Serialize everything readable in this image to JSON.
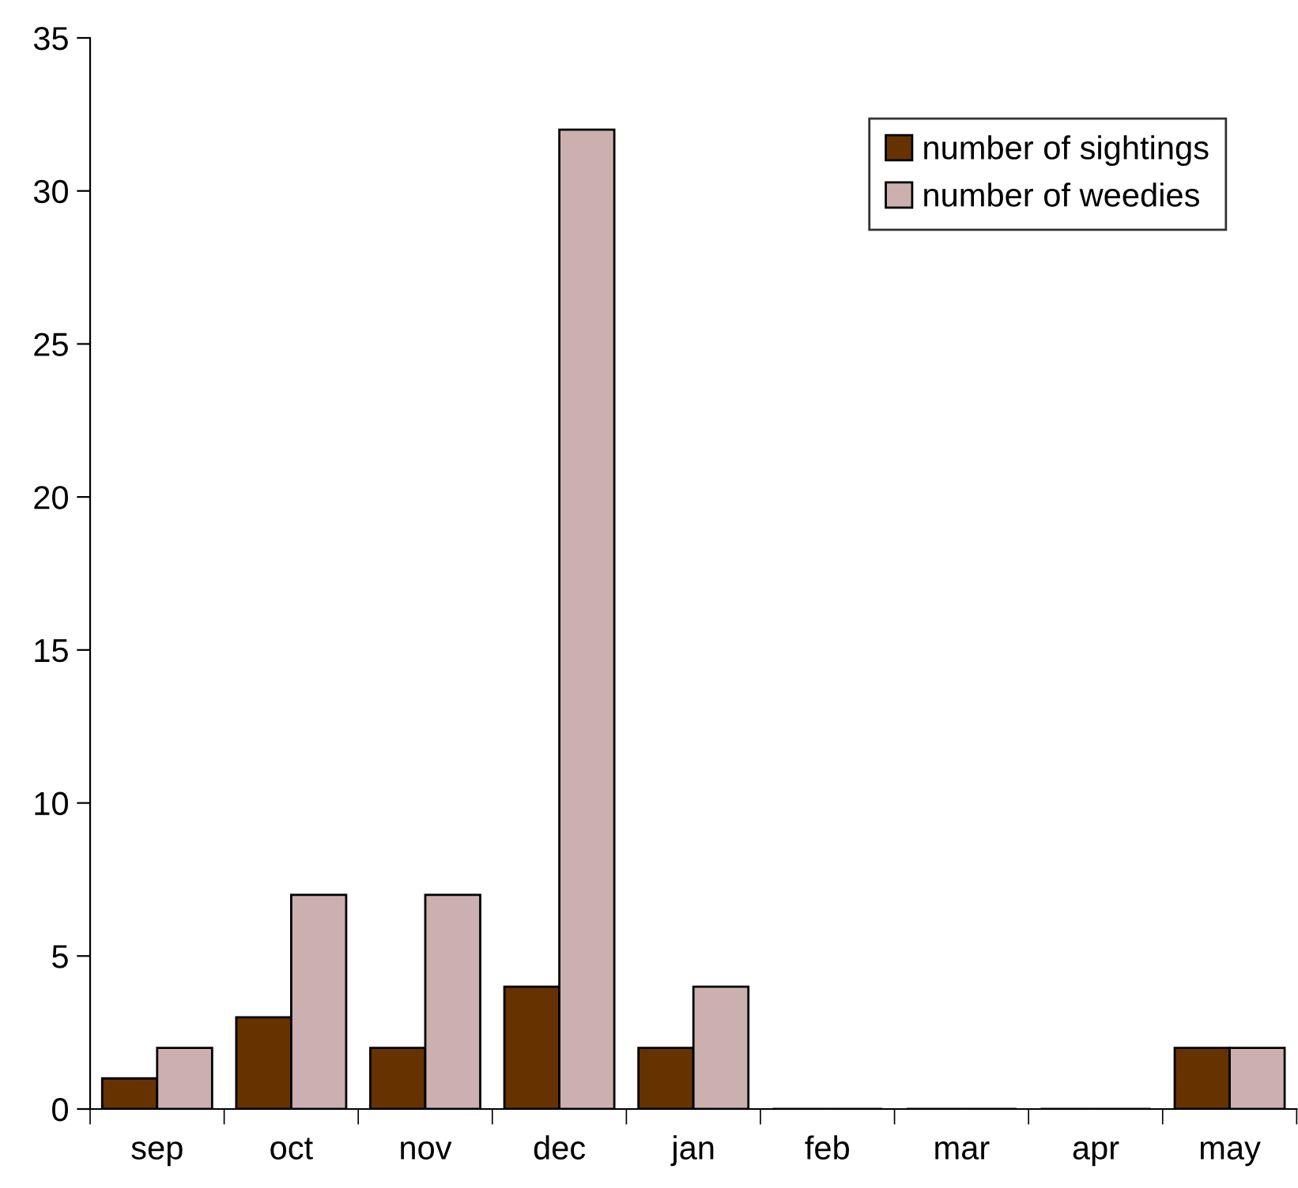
{
  "chart_data": {
    "type": "bar",
    "categories": [
      "sep",
      "oct",
      "nov",
      "dec",
      "jan",
      "feb",
      "mar",
      "apr",
      "may"
    ],
    "series": [
      {
        "name": "number of sightings",
        "color": "#663300",
        "values": [
          1,
          3,
          2,
          4,
          2,
          0,
          0,
          0,
          2
        ]
      },
      {
        "name": "number of weedies",
        "color": "#ccb0b0",
        "values": [
          2,
          7,
          7,
          32,
          4,
          0,
          0,
          0,
          2
        ]
      }
    ],
    "ylim": [
      0,
      35
    ],
    "yticks": [
      0,
      5,
      10,
      15,
      20,
      25,
      30,
      35
    ],
    "grid": false,
    "legend": "top right"
  }
}
